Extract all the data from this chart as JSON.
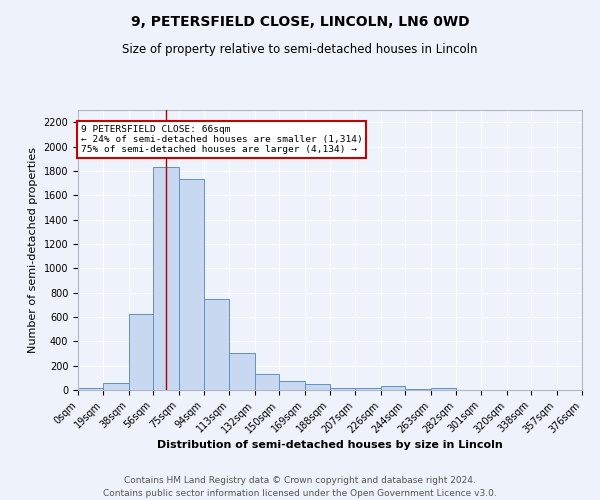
{
  "title": "9, PETERSFIELD CLOSE, LINCOLN, LN6 0WD",
  "subtitle": "Size of property relative to semi-detached houses in Lincoln",
  "xlabel": "Distribution of semi-detached houses by size in Lincoln",
  "ylabel": "Number of semi-detached properties",
  "footer_line1": "Contains HM Land Registry data © Crown copyright and database right 2024.",
  "footer_line2": "Contains public sector information licensed under the Open Government Licence v3.0.",
  "bin_labels": [
    "0sqm",
    "19sqm",
    "38sqm",
    "56sqm",
    "75sqm",
    "94sqm",
    "113sqm",
    "132sqm",
    "150sqm",
    "169sqm",
    "188sqm",
    "207sqm",
    "226sqm",
    "244sqm",
    "263sqm",
    "282sqm",
    "301sqm",
    "320sqm",
    "338sqm",
    "357sqm",
    "376sqm"
  ],
  "bin_edges": [
    0,
    19,
    38,
    56,
    75,
    94,
    113,
    132,
    150,
    169,
    188,
    207,
    226,
    244,
    263,
    282,
    301,
    320,
    338,
    357,
    376
  ],
  "bar_heights": [
    15,
    60,
    625,
    1830,
    1730,
    745,
    305,
    135,
    70,
    50,
    20,
    15,
    30,
    10,
    15,
    0,
    0,
    0,
    0,
    0
  ],
  "bar_color": "#c8d8f0",
  "bar_edge_color": "#6090c8",
  "property_size": 66,
  "property_line_color": "#aa0000",
  "annotation_box_color": "#ffffff",
  "annotation_box_edge_color": "#cc0000",
  "annotation_text": "9 PETERSFIELD CLOSE: 66sqm",
  "annotation_line1": "← 24% of semi-detached houses are smaller (1,314)",
  "annotation_line2": "75% of semi-detached houses are larger (4,134) →",
  "ylim": [
    0,
    2300
  ],
  "yticks": [
    0,
    200,
    400,
    600,
    800,
    1000,
    1200,
    1400,
    1600,
    1800,
    2000,
    2200
  ],
  "background_color": "#eef2fa",
  "grid_color": "#ffffff",
  "title_fontsize": 10,
  "subtitle_fontsize": 8.5,
  "axis_label_fontsize": 8,
  "tick_fontsize": 7,
  "footer_fontsize": 6.5
}
